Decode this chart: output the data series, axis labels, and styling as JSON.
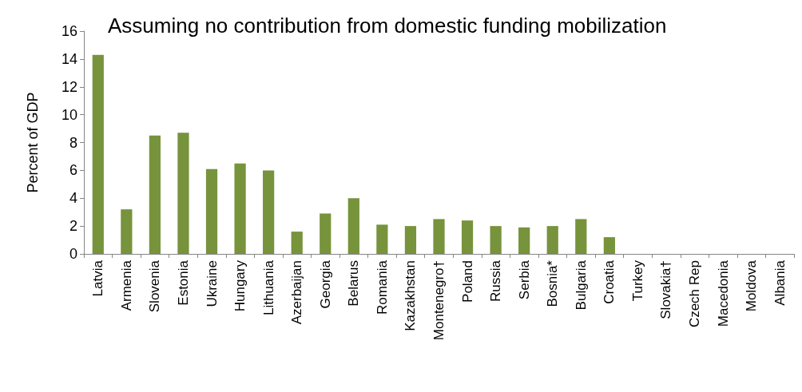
{
  "chart_data": {
    "type": "bar",
    "title": "Assuming no contribution from domestic funding mobilization",
    "ylabel": "Percent of GDP",
    "categories": [
      "Latvia",
      "Armenia",
      "Slovenia",
      "Estonia",
      "Ukraine",
      "Hungary",
      "Lithuania",
      "Azerbaijan",
      "Georgia",
      "Belarus",
      "Romania",
      "Kazakhstan",
      "Montenegro†",
      "Poland",
      "Russia",
      "Serbia",
      "Bosnia*",
      "Bulgaria",
      "Croatia",
      "Turkey",
      "Slovakia†",
      "Czech Rep",
      "Macedonia",
      "Moldova",
      "Albania"
    ],
    "values": [
      14.3,
      3.2,
      8.5,
      8.7,
      6.1,
      6.5,
      6.0,
      1.6,
      2.9,
      4.0,
      2.1,
      2.0,
      2.5,
      2.4,
      2.0,
      1.9,
      2.0,
      2.5,
      1.2,
      0,
      0,
      0,
      0,
      0,
      0
    ],
    "color": "#77933c",
    "ylim": [
      0,
      16
    ],
    "yticks": [
      0,
      2,
      4,
      6,
      8,
      10,
      12,
      14,
      16
    ],
    "grid": false
  }
}
